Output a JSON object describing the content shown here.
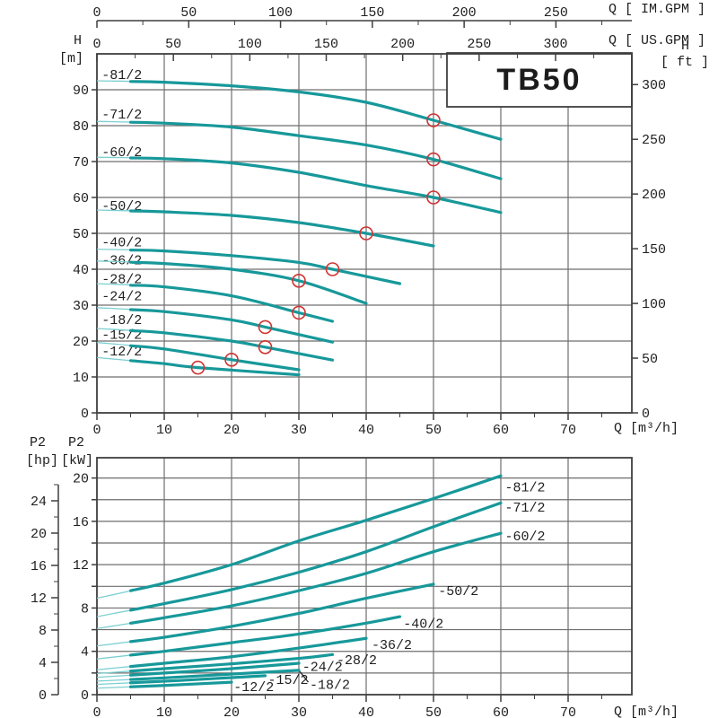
{
  "page": {
    "model": "TB50"
  },
  "labels": {
    "im_gpm": "Q [ IM.GPM ]",
    "us_gpm": "Q [ US.GPM ]",
    "h_right": "H",
    "ft_unit": "[ ft ]",
    "h_left": "H",
    "m_unit": "[m]",
    "q_m3h_top": "Q [m³/h]",
    "q_m3h_bottom": "Q [m³/h]",
    "p2_hp": "P2",
    "p2_kw": "P2",
    "hp_unit": "[hp]",
    "kw_unit": "[kW]"
  },
  "colors": {
    "curve": "#17989a",
    "curve_light": "#7ccfd1",
    "circle": "#cf3333",
    "grid": "#6e6e6e",
    "frame": "#3f3f3f",
    "text": "#1f1f1f"
  },
  "chart_data": [
    {
      "type": "line",
      "role": "head-flow-curves",
      "title": "TB50",
      "xlabel": "Q [m³/h]",
      "ylabel": "H [m]",
      "y2label": "H [ ft ]",
      "xlim": [
        0,
        79.5
      ],
      "ylim": [
        0,
        100
      ],
      "xticks": [
        0,
        10,
        20,
        30,
        40,
        50,
        60,
        70
      ],
      "x_minor_step": 5,
      "yticks": [
        0,
        10,
        20,
        30,
        40,
        50,
        60,
        70,
        80,
        90
      ],
      "y2_ticks_ft": [
        0,
        50,
        100,
        150,
        200,
        250,
        300
      ],
      "m_per_ft": 0.3048,
      "top_axes": [
        {
          "label": "Q [ IM.GPM ]",
          "m3h_per_unit": 0.27276,
          "tick_step": 50,
          "minor_step": 25,
          "max_label": 250
        },
        {
          "label": "Q [ US.GPM ]",
          "m3h_per_unit": 0.22712,
          "tick_step": 50,
          "minor_step": 25,
          "max_label": 300
        }
      ],
      "bold_from_q": 5,
      "grid": true,
      "series": [
        {
          "name": "-81/2",
          "points": [
            [
              0,
              92.5
            ],
            [
              10,
              92.1
            ],
            [
              20,
              91.1
            ],
            [
              30,
              89.4
            ],
            [
              40,
              86.5
            ],
            [
              50,
              81.5
            ],
            [
              60,
              76.2
            ]
          ],
          "op": [
            50,
            81.5
          ],
          "label_at": [
            0.7,
            94.2
          ]
        },
        {
          "name": "-71/2",
          "points": [
            [
              0,
              81.2
            ],
            [
              10,
              80.7
            ],
            [
              20,
              79.6
            ],
            [
              30,
              77.2
            ],
            [
              40,
              74.6
            ],
            [
              50,
              70.6
            ],
            [
              60,
              65.2
            ]
          ],
          "op": [
            50,
            70.6
          ],
          "label_at": [
            0.7,
            83.2
          ]
        },
        {
          "name": "-60/2",
          "points": [
            [
              0,
              71.2
            ],
            [
              10,
              70.8
            ],
            [
              20,
              69.6
            ],
            [
              30,
              67.0
            ],
            [
              40,
              63.3
            ],
            [
              50,
              60.0
            ],
            [
              60,
              55.8
            ]
          ],
          "op": [
            50,
            60.0
          ],
          "label_at": [
            0.7,
            72.8
          ]
        },
        {
          "name": "-50/2",
          "points": [
            [
              0,
              56.5
            ],
            [
              10,
              56.0
            ],
            [
              20,
              55.0
            ],
            [
              30,
              53.0
            ],
            [
              40,
              50.0
            ],
            [
              50,
              46.5
            ]
          ],
          "op": [
            40,
            50.0
          ],
          "label_at": [
            0.7,
            57.8
          ]
        },
        {
          "name": "-40/2",
          "points": [
            [
              0,
              45.6
            ],
            [
              10,
              45.1
            ],
            [
              20,
              43.8
            ],
            [
              30,
              41.9
            ],
            [
              35,
              40.0
            ],
            [
              45,
              36.0
            ]
          ],
          "op": [
            35,
            40.0
          ],
          "label_at": [
            0.7,
            47.6
          ]
        },
        {
          "name": "-36/2",
          "points": [
            [
              0,
              42.3
            ],
            [
              10,
              41.6
            ],
            [
              20,
              40.0
            ],
            [
              30,
              36.8
            ],
            [
              40,
              30.5
            ]
          ],
          "op": [
            30,
            36.8
          ],
          "label_at": [
            0.7,
            42.6
          ]
        },
        {
          "name": "-28/2",
          "points": [
            [
              0,
              36.0
            ],
            [
              10,
              35.1
            ],
            [
              20,
              32.6
            ],
            [
              30,
              27.9
            ],
            [
              35,
              25.5
            ]
          ],
          "op": [
            30,
            27.9
          ],
          "label_at": [
            0.7,
            37.4
          ]
        },
        {
          "name": "-24/2",
          "points": [
            [
              0,
              29.3
            ],
            [
              10,
              28.2
            ],
            [
              20,
              25.9
            ],
            [
              25,
              23.9
            ],
            [
              35,
              19.7
            ]
          ],
          "op": [
            25,
            23.9
          ],
          "label_at": [
            0.7,
            32.6
          ]
        },
        {
          "name": "-18/2",
          "points": [
            [
              0,
              23.5
            ],
            [
              10,
              22.3
            ],
            [
              20,
              20.0
            ],
            [
              25,
              18.3
            ],
            [
              35,
              14.7
            ]
          ],
          "op": [
            25,
            18.3
          ],
          "label_at": [
            0.7,
            26.0
          ]
        },
        {
          "name": "-15/2",
          "points": [
            [
              0,
              19.6
            ],
            [
              10,
              17.8
            ],
            [
              20,
              14.8
            ],
            [
              30,
              12.0
            ]
          ],
          "op": [
            20,
            14.8
          ],
          "label_at": [
            0.7,
            21.9
          ]
        },
        {
          "name": "-12/2",
          "points": [
            [
              0,
              15.4
            ],
            [
              10,
              13.7
            ],
            [
              15,
              12.6
            ],
            [
              30,
              10.6
            ]
          ],
          "op": [
            15,
            12.6
          ],
          "label_at": [
            0.7,
            17.3
          ]
        }
      ]
    },
    {
      "type": "line",
      "role": "power-curves",
      "xlabel": "Q [m³/h]",
      "ylabel": "P2 [kW]",
      "y2label": "P2 [hp]",
      "xlim": [
        0,
        79.5
      ],
      "ylim": [
        0,
        21.9
      ],
      "xticks": [
        0,
        10,
        20,
        30,
        40,
        50,
        60,
        70
      ],
      "x_minor_step": 5,
      "yticks_kw_step": 2,
      "yticks_kw_labeled": [
        0,
        4,
        8,
        12,
        16,
        20
      ],
      "hp_ticks_labeled": [
        0,
        4,
        8,
        12,
        16,
        20,
        24
      ],
      "hp_tick_step": 2,
      "hp_max_tick": 26,
      "kw_per_hp": 0.7457,
      "bold_from_q": 5,
      "grid": true,
      "leader": {
        "from": [
          30,
          2.25
        ],
        "to": [
          31.4,
          1.15
        ]
      },
      "series": [
        {
          "name": "-81/2",
          "points": [
            [
              0,
              8.9
            ],
            [
              10,
              10.3
            ],
            [
              20,
              12.0
            ],
            [
              30,
              14.2
            ],
            [
              40,
              16.1
            ],
            [
              50,
              18.1
            ],
            [
              60,
              20.2
            ]
          ],
          "label_at": [
            60.6,
            19.2
          ]
        },
        {
          "name": "-71/2",
          "points": [
            [
              0,
              7.2
            ],
            [
              10,
              8.4
            ],
            [
              20,
              9.7
            ],
            [
              30,
              11.3
            ],
            [
              40,
              13.2
            ],
            [
              50,
              15.5
            ],
            [
              60,
              17.7
            ]
          ],
          "label_at": [
            60.6,
            17.3
          ]
        },
        {
          "name": "-60/2",
          "points": [
            [
              0,
              6.1
            ],
            [
              10,
              7.1
            ],
            [
              20,
              8.2
            ],
            [
              30,
              9.6
            ],
            [
              40,
              11.2
            ],
            [
              50,
              13.2
            ],
            [
              60,
              14.9
            ]
          ],
          "label_at": [
            60.6,
            14.65
          ]
        },
        {
          "name": "-50/2",
          "points": [
            [
              0,
              4.5
            ],
            [
              10,
              5.3
            ],
            [
              20,
              6.3
            ],
            [
              30,
              7.5
            ],
            [
              40,
              8.9
            ],
            [
              50,
              10.2
            ]
          ],
          "label_at": [
            50.7,
            9.6
          ]
        },
        {
          "name": "-40/2",
          "points": [
            [
              0,
              3.3
            ],
            [
              10,
              4.0
            ],
            [
              20,
              4.8
            ],
            [
              30,
              5.6
            ],
            [
              40,
              6.6
            ],
            [
              45,
              7.2
            ]
          ],
          "label_at": [
            45.5,
            6.6
          ]
        },
        {
          "name": "-36/2",
          "points": [
            [
              0,
              2.3
            ],
            [
              10,
              2.9
            ],
            [
              20,
              3.5
            ],
            [
              30,
              4.3
            ],
            [
              40,
              5.2
            ]
          ],
          "label_at": [
            40.8,
            4.65
          ]
        },
        {
          "name": "-28/2",
          "points": [
            [
              0,
              1.95
            ],
            [
              10,
              2.4
            ],
            [
              20,
              2.85
            ],
            [
              30,
              3.35
            ],
            [
              35,
              3.7
            ]
          ],
          "label_at": [
            35.6,
            3.25
          ]
        },
        {
          "name": "-24/2",
          "points": [
            [
              0,
              1.6
            ],
            [
              10,
              2.0
            ],
            [
              20,
              2.4
            ],
            [
              30,
              2.9
            ]
          ],
          "label_at": [
            30.5,
            2.6
          ]
        },
        {
          "name": "-18/2",
          "points": [
            [
              0,
              1.25
            ],
            [
              10,
              1.55
            ],
            [
              20,
              1.9
            ],
            [
              30,
              2.25
            ]
          ],
          "label_at": [
            31.6,
            0.95
          ]
        },
        {
          "name": "-15/2",
          "points": [
            [
              0,
              0.95
            ],
            [
              12,
              1.3
            ],
            [
              25,
              1.75
            ]
          ],
          "label_at": [
            25.4,
            1.4
          ]
        },
        {
          "name": "-12/2",
          "points": [
            [
              0,
              0.6
            ],
            [
              10,
              0.85
            ],
            [
              20,
              1.15
            ]
          ],
          "label_at": [
            20.3,
            0.75
          ]
        }
      ]
    }
  ]
}
